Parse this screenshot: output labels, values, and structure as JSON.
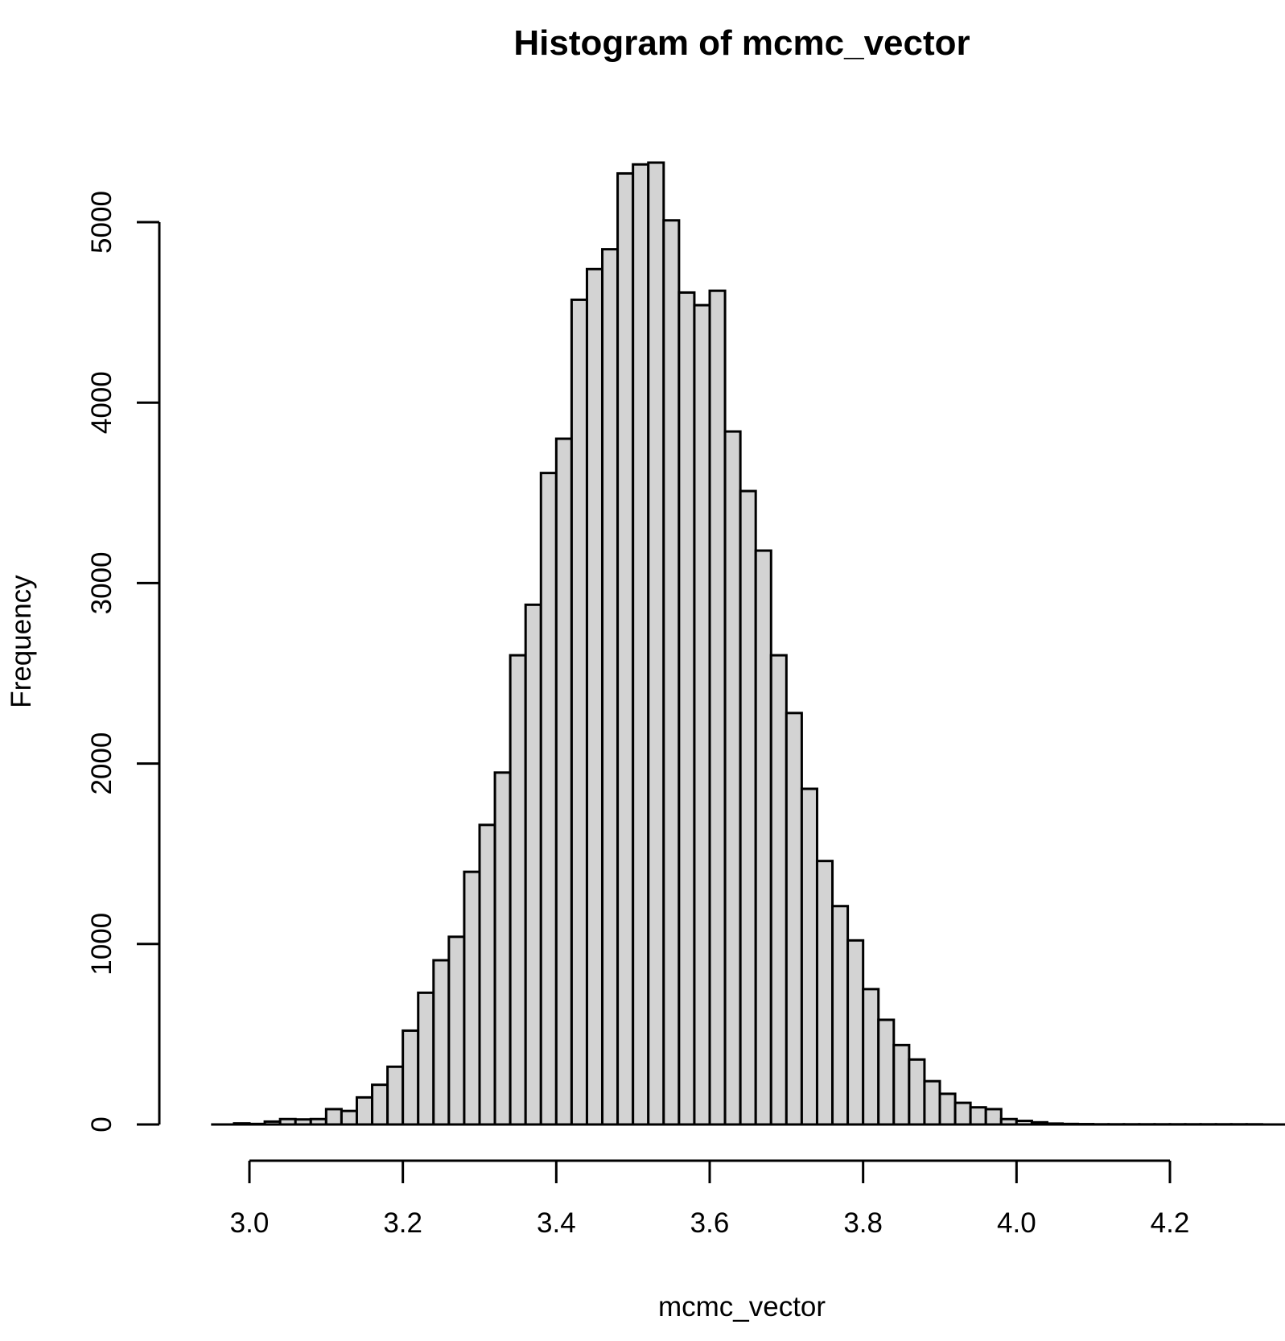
{
  "chart_data": {
    "type": "bar",
    "title": "Histogram of mcmc_vector",
    "xlabel": "mcmc_vector",
    "ylabel": "Frequency",
    "bin_width": 0.02,
    "bin_start": 2.98,
    "xlim": [
      2.95,
      4.35
    ],
    "ylim": [
      0,
      5400
    ],
    "x_ticks": [
      3.0,
      3.2,
      3.4,
      3.6,
      3.8,
      4.0,
      4.2
    ],
    "x_tick_labels": [
      "3.0",
      "3.2",
      "3.4",
      "3.6",
      "3.8",
      "4.0",
      "4.2"
    ],
    "y_ticks": [
      0,
      1000,
      2000,
      3000,
      4000,
      5000
    ],
    "y_tick_labels": [
      "0",
      "1000",
      "2000",
      "3000",
      "4000",
      "5000"
    ],
    "bar_fill": "#d3d3d3",
    "bar_stroke": "#000000",
    "grid": false,
    "values": [
      6,
      3,
      16,
      30,
      28,
      30,
      85,
      75,
      150,
      220,
      320,
      520,
      730,
      910,
      1040,
      1400,
      1660,
      1950,
      2600,
      2880,
      3610,
      3800,
      4570,
      4740,
      4850,
      5270,
      5320,
      5330,
      5010,
      4610,
      4540,
      4620,
      3840,
      3510,
      3180,
      2600,
      2280,
      1860,
      1460,
      1210,
      1020,
      750,
      580,
      440,
      360,
      240,
      170,
      120,
      95,
      85,
      30,
      20,
      12,
      5,
      3,
      2,
      1,
      1,
      1,
      1,
      1,
      1,
      1,
      1,
      1,
      1,
      1
    ]
  }
}
